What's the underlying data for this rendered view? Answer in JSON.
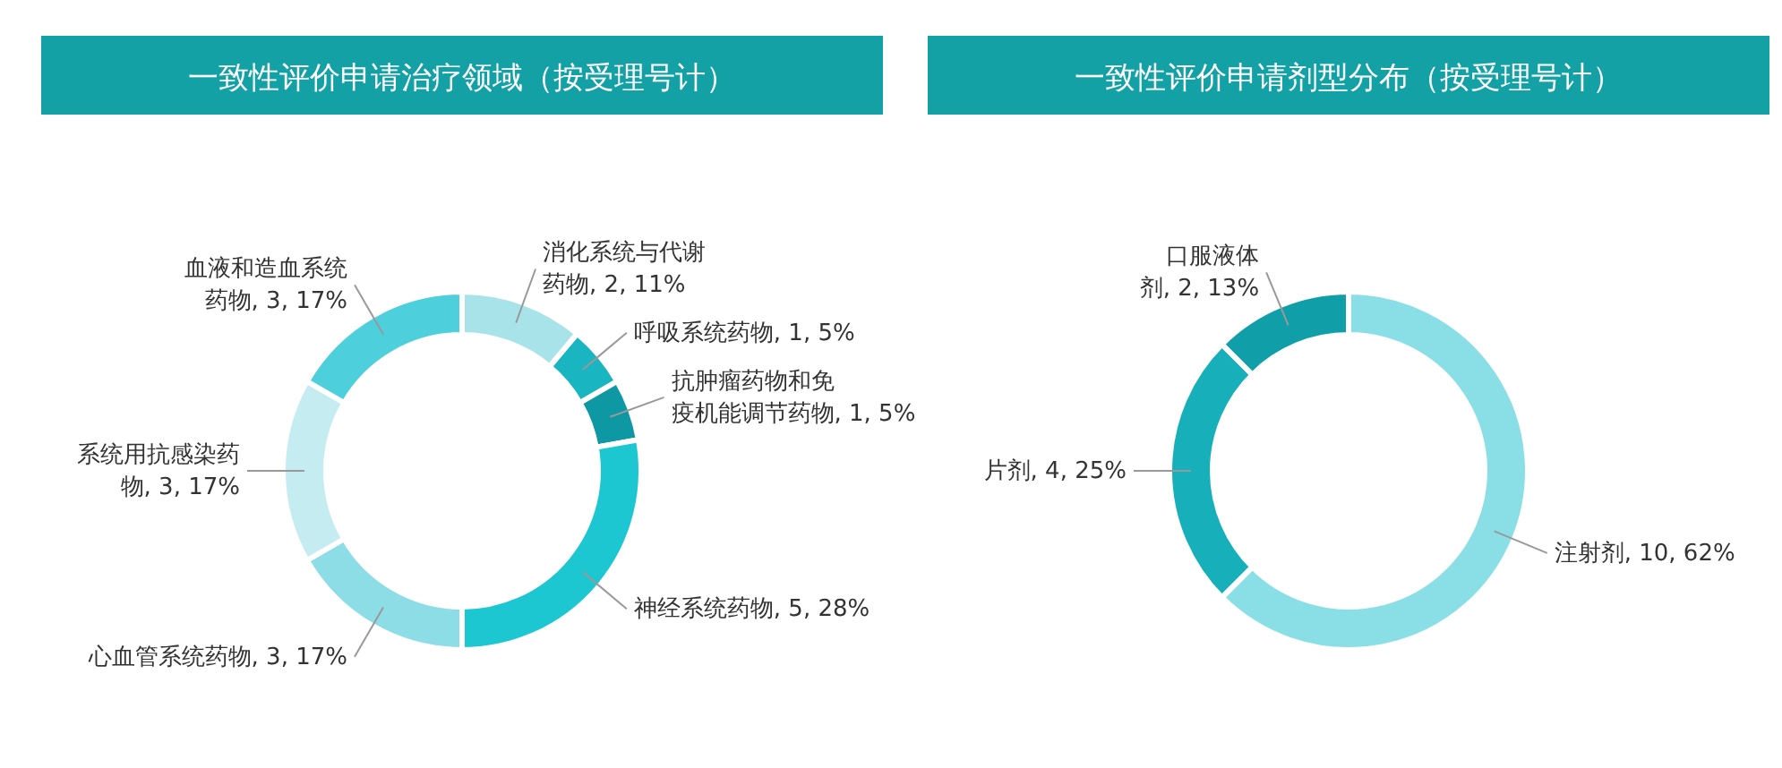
{
  "chart_data": [
    {
      "type": "donut",
      "title": "一致性评价申请治疗领域（按受理号计）",
      "categories": [
        "消化系统与代谢药物",
        "呼吸系统药物",
        "抗肿瘤药物和免疫机能调节药物",
        "神经系统药物",
        "心血管系统药物",
        "系统用抗感染药物",
        "血液和造血系统药物"
      ],
      "values": [
        2,
        1,
        1,
        5,
        3,
        3,
        3
      ],
      "value_labels": [
        "2, 11%",
        "1, 5%",
        "1, 5%",
        "5, 28%",
        "3, 17%",
        "3, 17%",
        "3, 17%"
      ],
      "colors": [
        "#a8e3ea",
        "#19b5c0",
        "#0e98a3",
        "#1cc7d1",
        "#8ddde6",
        "#c5ecf0",
        "#4dd0dc"
      ]
    },
    {
      "type": "donut",
      "title": "一致性评价申请剂型分布（按受理号计）",
      "categories": [
        "注射剂",
        "片剂",
        "口服液体剂"
      ],
      "values": [
        10,
        4,
        2
      ],
      "value_labels": [
        "10, 62%",
        "4, 25%",
        "2, 13%"
      ],
      "colors": [
        "#8adfe6",
        "#17b0ba",
        "#109ea8"
      ]
    }
  ]
}
